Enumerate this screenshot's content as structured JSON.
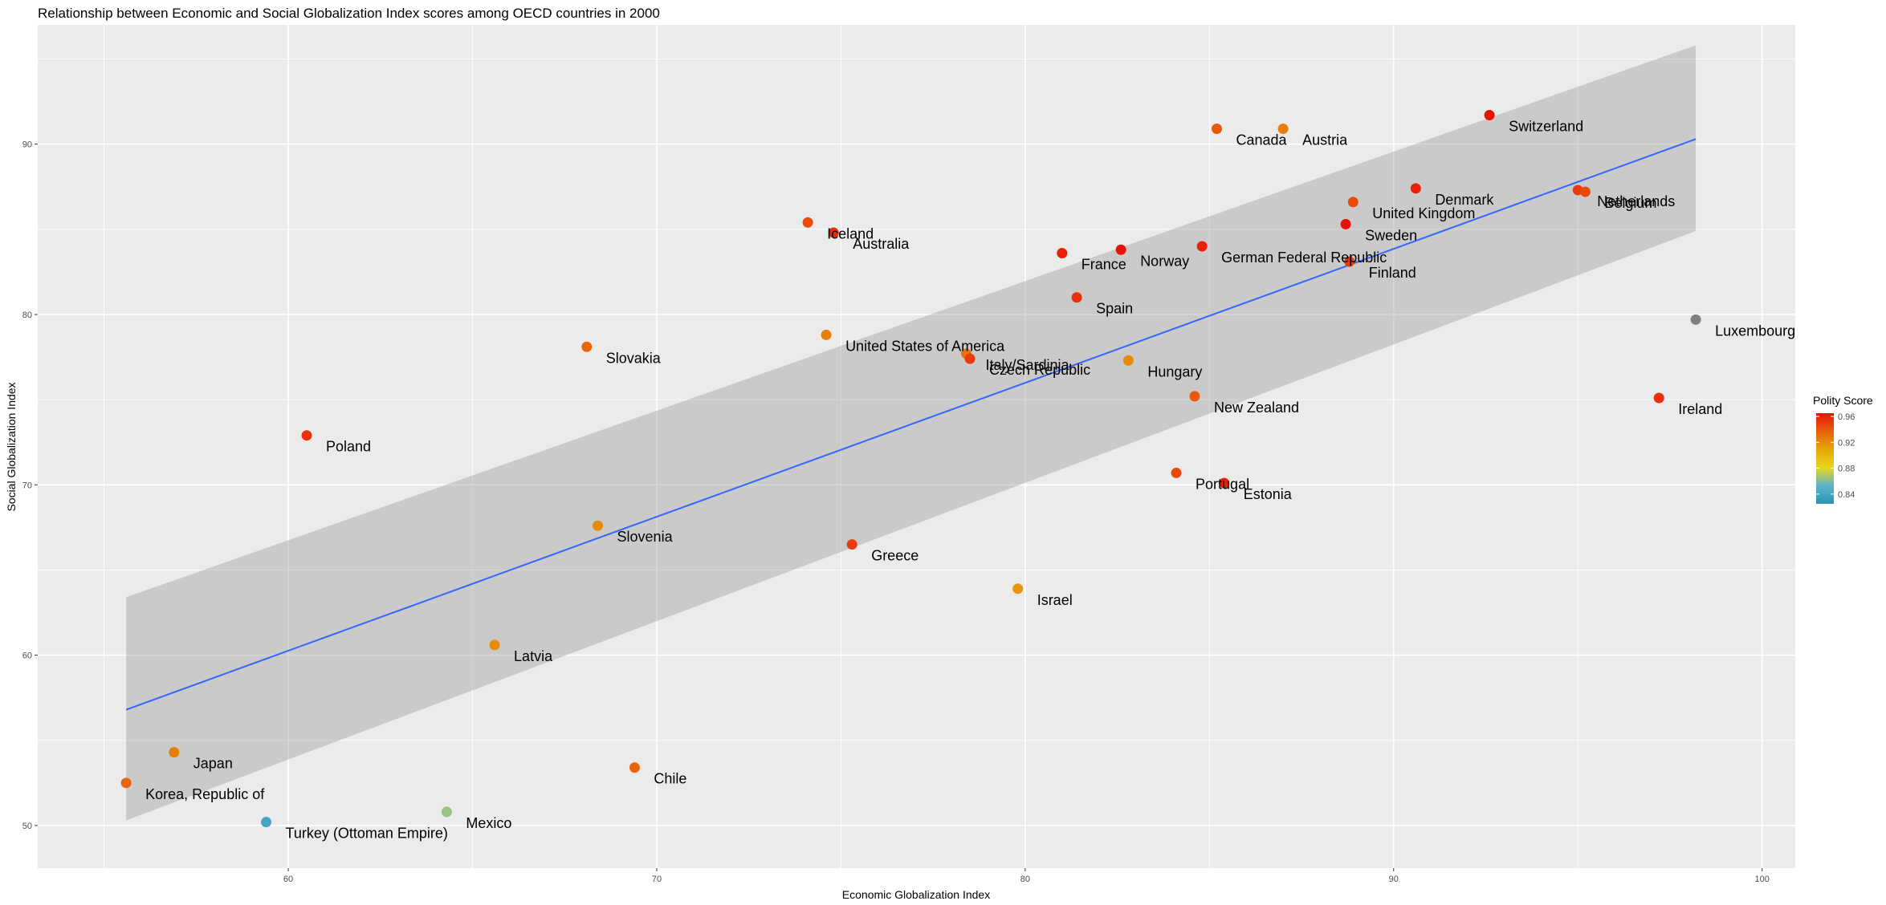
{
  "chart_data": {
    "type": "scatter",
    "title": "Relationship between Economic and Social Globalization Index scores among OECD countries in 2000",
    "xlabel": "Economic Globalization Index",
    "ylabel": "Social Globalization Index",
    "xlim": [
      53.2,
      100.9
    ],
    "ylim": [
      47.5,
      97.0
    ],
    "xticks": [
      60,
      70,
      80,
      90,
      100
    ],
    "yticks": [
      50,
      60,
      70,
      80,
      90
    ],
    "grid": true,
    "legend": {
      "title": "Polity Score",
      "position": "right",
      "ticks": [
        0.96,
        0.92,
        0.88,
        0.84
      ],
      "range": [
        0.825,
        0.965
      ],
      "colors": [
        "#2b95b5",
        "#5cb3cc",
        "#e8d81a",
        "#e6a60a",
        "#e8600a",
        "#e8120a"
      ]
    },
    "na_color": "#808080",
    "trend": {
      "x": [
        55.6,
        98.2
      ],
      "y": [
        56.8,
        90.3
      ],
      "band_upper": [
        63.4,
        95.8
      ],
      "band_lower": [
        50.3,
        84.9
      ]
    },
    "points": [
      {
        "label": "Switzerland",
        "x": 92.6,
        "y": 91.7,
        "polity": 0.965
      },
      {
        "label": "Canada",
        "x": 85.2,
        "y": 90.9,
        "polity": 0.94
      },
      {
        "label": "Austria",
        "x": 87.0,
        "y": 90.9,
        "polity": 0.925
      },
      {
        "label": "Denmark",
        "x": 90.6,
        "y": 87.4,
        "polity": 0.96
      },
      {
        "label": "United Kingdom",
        "x": 88.9,
        "y": 86.6,
        "polity": 0.945
      },
      {
        "label": "Netherlands",
        "x": 95.0,
        "y": 87.3,
        "polity": 0.95
      },
      {
        "label": "Belgium",
        "x": 95.2,
        "y": 87.2,
        "polity": 0.945
      },
      {
        "label": "Sweden",
        "x": 88.7,
        "y": 85.3,
        "polity": 0.965
      },
      {
        "label": "Iceland",
        "x": 74.1,
        "y": 85.4,
        "polity": 0.945
      },
      {
        "label": "Australia",
        "x": 74.8,
        "y": 84.8,
        "polity": 0.955
      },
      {
        "label": "France",
        "x": 81.0,
        "y": 83.6,
        "polity": 0.96
      },
      {
        "label": "Norway",
        "x": 82.6,
        "y": 83.8,
        "polity": 0.965
      },
      {
        "label": "German Federal Republic",
        "x": 84.8,
        "y": 84.0,
        "polity": 0.96
      },
      {
        "label": "Finland",
        "x": 88.8,
        "y": 83.1,
        "polity": 0.95
      },
      {
        "label": "Spain",
        "x": 81.4,
        "y": 81.0,
        "polity": 0.955
      },
      {
        "label": "Luxembourg",
        "x": 98.2,
        "y": 79.7,
        "polity": null
      },
      {
        "label": "Slovakia",
        "x": 68.1,
        "y": 78.1,
        "polity": 0.935
      },
      {
        "label": "United States of America",
        "x": 74.6,
        "y": 78.8,
        "polity": 0.925
      },
      {
        "label": "Italy/Sardinia",
        "x": 78.4,
        "y": 77.7,
        "polity": 0.93
      },
      {
        "label": "Czech Republic",
        "x": 78.5,
        "y": 77.4,
        "polity": 0.95
      },
      {
        "label": "Hungary",
        "x": 82.8,
        "y": 77.3,
        "polity": 0.92
      },
      {
        "label": "New Zealand",
        "x": 84.6,
        "y": 75.2,
        "polity": 0.94
      },
      {
        "label": "Ireland",
        "x": 97.2,
        "y": 75.1,
        "polity": 0.955
      },
      {
        "label": "Poland",
        "x": 60.5,
        "y": 72.9,
        "polity": 0.955
      },
      {
        "label": "Portugal",
        "x": 84.1,
        "y": 70.7,
        "polity": 0.945
      },
      {
        "label": "Estonia",
        "x": 85.4,
        "y": 70.1,
        "polity": 0.96
      },
      {
        "label": "Slovenia",
        "x": 68.4,
        "y": 67.6,
        "polity": 0.92
      },
      {
        "label": "Greece",
        "x": 75.3,
        "y": 66.5,
        "polity": 0.95
      },
      {
        "label": "Israel",
        "x": 79.8,
        "y": 63.9,
        "polity": 0.915
      },
      {
        "label": "Latvia",
        "x": 65.6,
        "y": 60.6,
        "polity": 0.92
      },
      {
        "label": "Japan",
        "x": 56.9,
        "y": 54.3,
        "polity": 0.925
      },
      {
        "label": "Chile",
        "x": 69.4,
        "y": 53.4,
        "polity": 0.935
      },
      {
        "label": "Korea, Republic of",
        "x": 55.6,
        "y": 52.5,
        "polity": 0.935
      },
      {
        "label": "Mexico",
        "x": 64.3,
        "y": 50.8,
        "polity": 0.865
      },
      {
        "label": "Turkey (Ottoman Empire)",
        "x": 59.4,
        "y": 50.2,
        "polity": 0.84
      }
    ]
  }
}
